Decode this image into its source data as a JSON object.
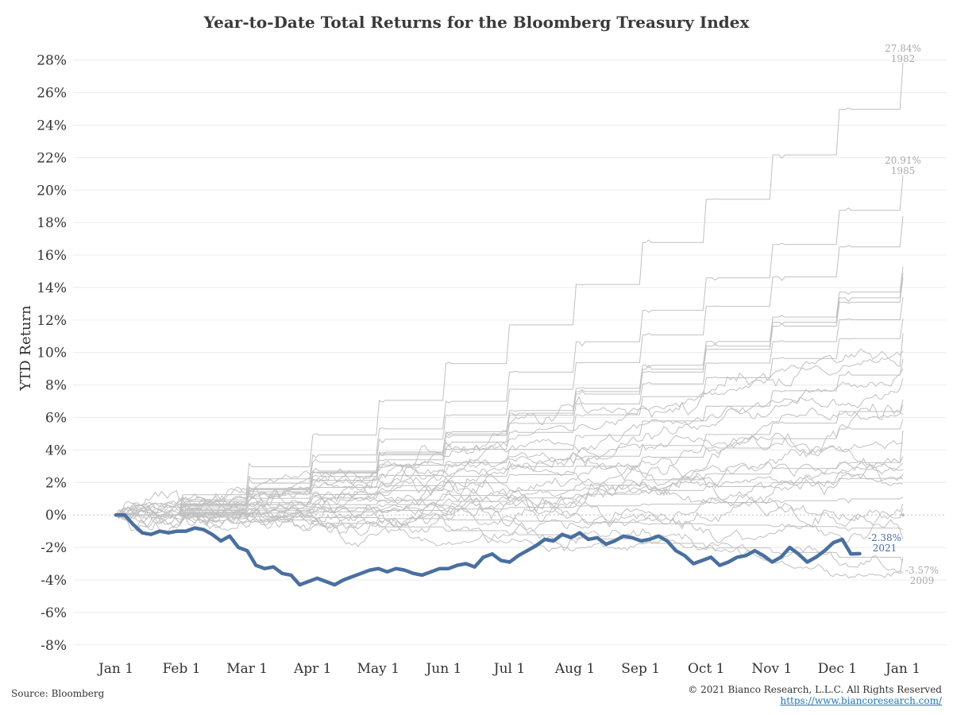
{
  "title": "Year-to-Date Total Returns for the Bloomberg Treasury Index",
  "source": "Source: Bloomberg",
  "copyright": "© 2021 Bianco Research, L.L.C. All Rights Reserved",
  "url": "https://www.biancoresearch.com/",
  "colors": {
    "highlight": "#4a6fa0",
    "background_series": "#c0c0c0",
    "gridline": "#ececec",
    "zero_line": "#bbbbbb",
    "link": "#1f77b4"
  },
  "chart_data": {
    "type": "line",
    "title": "Year-to-Date Total Returns for the Bloomberg Treasury Index",
    "xlabel": "",
    "ylabel": "YTD Return",
    "x_ticks": [
      "Jan 1",
      "Feb 1",
      "Mar 1",
      "Apr 1",
      "May 1",
      "Jun 1",
      "Jul 1",
      "Aug 1",
      "Sep 1",
      "Oct 1",
      "Nov 1",
      "Dec 1",
      "Jan 1"
    ],
    "y_ticks": [
      "-8%",
      "-6%",
      "-4%",
      "-2%",
      "0%",
      "2%",
      "4%",
      "6%",
      "8%",
      "10%",
      "12%",
      "14%",
      "16%",
      "18%",
      "20%",
      "22%",
      "24%",
      "26%",
      "28%"
    ],
    "ylim": [
      -8.5,
      29.5
    ],
    "grid": true,
    "highlight_series": {
      "name": "2021",
      "end_label": "-2.38%",
      "end_value": -2.38,
      "values": [
        0,
        0,
        -0.6,
        -1.1,
        -1.2,
        -1.0,
        -1.1,
        -1.0,
        -1.0,
        -0.8,
        -0.9,
        -1.2,
        -1.6,
        -1.3,
        -2.0,
        -2.2,
        -3.1,
        -3.3,
        -3.2,
        -3.6,
        -3.7,
        -4.3,
        -4.1,
        -3.9,
        -4.1,
        -4.3,
        -4.0,
        -3.8,
        -3.6,
        -3.4,
        -3.3,
        -3.5,
        -3.3,
        -3.4,
        -3.6,
        -3.7,
        -3.5,
        -3.3,
        -3.3,
        -3.1,
        -3.0,
        -3.2,
        -2.6,
        -2.4,
        -2.8,
        -2.9,
        -2.5,
        -2.2,
        -1.9,
        -1.5,
        -1.6,
        -1.2,
        -1.4,
        -1.1,
        -1.5,
        -1.4,
        -1.8,
        -1.6,
        -1.3,
        -1.4,
        -1.6,
        -1.5,
        -1.3,
        -1.6,
        -2.2,
        -2.5,
        -3.0,
        -2.8,
        -2.6,
        -3.1,
        -2.9,
        -2.6,
        -2.5,
        -2.2,
        -2.5,
        -2.9,
        -2.6,
        -2.0,
        -2.4,
        -2.9,
        -2.6,
        -2.2,
        -1.7,
        -1.5,
        -2.4,
        -2.38
      ]
    },
    "labeled_series": [
      {
        "name": "1982",
        "end_label": "27.84%",
        "end_value": 27.84
      },
      {
        "name": "1985",
        "end_label": "20.91%",
        "end_value": 20.91
      },
      {
        "name": "2009",
        "end_label": "-3.57%",
        "end_value": -3.57
      }
    ],
    "other_years_note": ""
  }
}
